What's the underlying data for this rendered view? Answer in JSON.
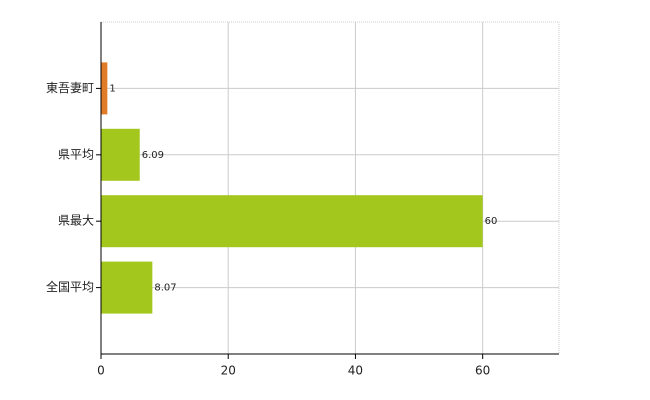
{
  "chart_data": {
    "type": "hbar",
    "categories": [
      "東吾妻町",
      "県平均",
      "県最大",
      "全国平均"
    ],
    "values": [
      1,
      6.09,
      60,
      8.07
    ],
    "colors": [
      "#e07b28",
      "#a3c71c",
      "#a3c71c",
      "#a3c71c"
    ],
    "xlim": [
      0,
      72
    ],
    "xticks": [
      0,
      20,
      40,
      60
    ],
    "grid": true
  }
}
